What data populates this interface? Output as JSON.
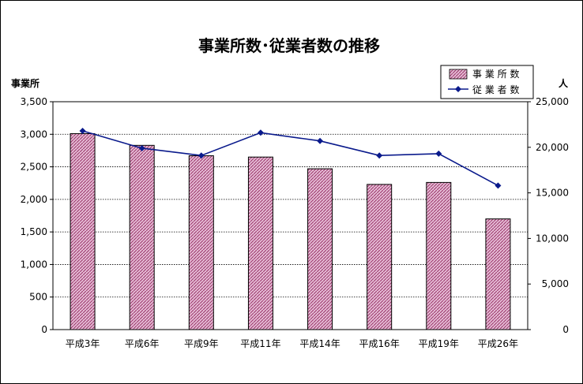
{
  "chart_data": {
    "type": "bar",
    "title": "事業所数･従業者数の推移",
    "categories": [
      "平成3年",
      "平成6年",
      "平成9年",
      "平成11年",
      "平成14年",
      "平成16年",
      "平成19年",
      "平成26年"
    ],
    "y_left": {
      "label": "事業所",
      "ylim": [
        0,
        3500
      ],
      "ticks": [
        "0",
        "500",
        "1,000",
        "1,500",
        "2,000",
        "2,500",
        "3,000",
        "3,500"
      ]
    },
    "y_right": {
      "label": "人",
      "ylim": [
        0,
        25000
      ],
      "ticks": [
        "0",
        "5,000",
        "10,000",
        "15,000",
        "20,000",
        "25,000"
      ]
    },
    "series": [
      {
        "name": "事業所数",
        "kind": "bar",
        "axis": "left",
        "values": [
          3010,
          2830,
          2670,
          2650,
          2470,
          2230,
          2260,
          1700
        ]
      },
      {
        "name": "従業者数",
        "kind": "line",
        "axis": "right",
        "values": [
          21800,
          19900,
          19100,
          21600,
          20700,
          19100,
          19300,
          15800
        ]
      }
    ],
    "legend": {
      "placement": "top-right",
      "labels": [
        "事 業 所 数",
        "従 業 者 数"
      ]
    },
    "grid": true,
    "colors": {
      "bar_fill": "#d9a9c4",
      "bar_pattern": "#9c3a6c",
      "line": "#0a1a8c",
      "grid": "#000000"
    }
  }
}
